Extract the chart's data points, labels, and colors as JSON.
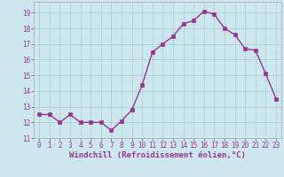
{
  "x": [
    0,
    1,
    2,
    3,
    4,
    5,
    6,
    7,
    8,
    9,
    10,
    11,
    12,
    13,
    14,
    15,
    16,
    17,
    18,
    19,
    20,
    21,
    22,
    23
  ],
  "y": [
    12.5,
    12.5,
    12.0,
    12.5,
    12.0,
    12.0,
    12.0,
    11.5,
    12.1,
    12.8,
    14.4,
    16.5,
    17.0,
    17.5,
    18.3,
    18.5,
    19.1,
    18.9,
    18.0,
    17.6,
    16.7,
    16.6,
    15.1,
    13.5
  ],
  "line_color": "#993399",
  "marker": "s",
  "markersize": 2.2,
  "linewidth": 1.0,
  "bg_color": "#cce8ee",
  "plot_bg_color": "#cce8ee",
  "grid_color": "#aacccc",
  "spine_color": "#aaaaaa",
  "xlabel": "Windchill (Refroidissement éolien,°C)",
  "xlim": [
    -0.5,
    23.5
  ],
  "ylim": [
    11,
    19.7
  ],
  "yticks": [
    11,
    12,
    13,
    14,
    15,
    16,
    17,
    18,
    19
  ],
  "xticks": [
    0,
    1,
    2,
    3,
    4,
    5,
    6,
    7,
    8,
    9,
    10,
    11,
    12,
    13,
    14,
    15,
    16,
    17,
    18,
    19,
    20,
    21,
    22,
    23
  ],
  "tick_fontsize": 5.5,
  "xlabel_fontsize": 6.5,
  "tick_color": "#993399",
  "xlabel_color": "#993399"
}
